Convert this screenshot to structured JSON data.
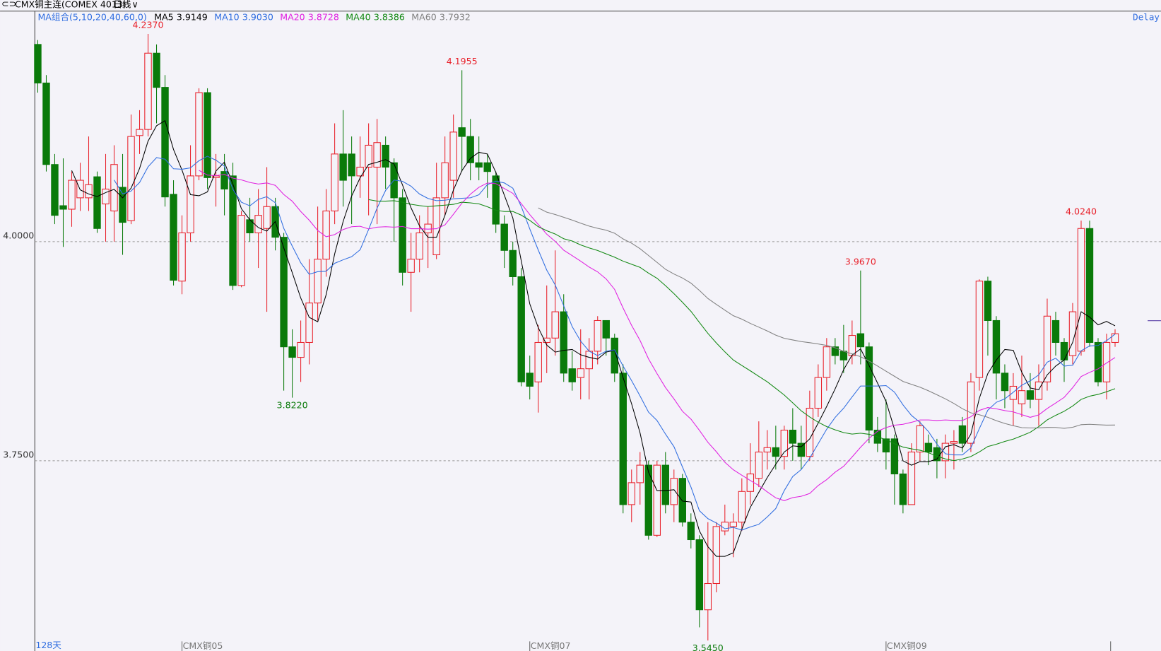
{
  "header": {
    "symbol": "CMX铜主连(COMEX 4013)",
    "period": "日线",
    "ma_group": "MA组合(5,10,20,40,60,0)",
    "delay": "Delay",
    "count": "128天"
  },
  "chart_data": {
    "type": "candlestick",
    "categories": [
      null,
      null,
      null,
      null,
      null,
      null,
      null,
      null,
      null,
      null,
      null,
      null,
      null,
      null,
      null,
      null,
      null,
      "CMX铜05",
      null,
      null,
      null,
      null,
      null,
      null,
      null,
      null,
      null,
      null,
      null,
      null,
      null,
      null,
      null,
      null,
      null,
      null,
      null,
      null,
      null,
      null,
      null,
      null,
      null,
      null,
      null,
      null,
      null,
      null,
      null,
      null,
      null,
      null,
      null,
      null,
      null,
      null,
      null,
      null,
      "CMX铜07",
      null,
      null,
      null,
      null,
      null,
      null,
      null,
      null,
      null,
      null,
      null,
      null,
      null,
      null,
      null,
      null,
      null,
      null,
      null,
      null,
      null,
      null,
      null,
      null,
      null,
      null,
      null,
      null,
      null,
      null,
      null,
      null,
      null,
      null,
      null,
      null,
      null,
      null,
      null,
      null,
      null,
      "CMX铜09",
      null,
      null,
      null,
      null,
      null,
      null,
      null,
      null,
      null,
      null,
      null,
      null,
      null,
      null,
      null,
      null,
      null,
      null,
      null,
      null,
      null,
      null,
      null,
      null,
      null,
      null,
      null
    ],
    "open": [
      4.225,
      4.181,
      4.088,
      4.041,
      4.037,
      4.05,
      4.05,
      4.074,
      4.043,
      4.035,
      4.062,
      4.024,
      4.121,
      4.128,
      4.215,
      4.176,
      4.054,
      3.955,
      4.01,
      4.075,
      4.17,
      4.073,
      4.08,
      4.075,
      3.95,
      4.025,
      4.01,
      4.015,
      4.04,
      4.005,
      3.88,
      3.868,
      3.885,
      3.93,
      3.98,
      4.035,
      4.1,
      4.1,
      4.075,
      4.085,
      4.085,
      4.11,
      4.09,
      4.05,
      3.965,
      3.98,
      4.01,
      3.985,
      4.05,
      4.07,
      4.13,
      4.12,
      4.09,
      4.09,
      4.075,
      4.02,
      3.99,
      3.96,
      3.85,
      3.84,
      3.885,
      3.89,
      3.92,
      3.855,
      3.845,
      3.855,
      3.875,
      3.91,
      3.89,
      3.85,
      3.7,
      3.725,
      3.745,
      3.665,
      3.745,
      3.7,
      3.73,
      3.68,
      3.66,
      3.58,
      3.61,
      3.67,
      3.675,
      3.68,
      3.715,
      3.73,
      3.76,
      3.765,
      3.755,
      3.785,
      3.77,
      3.755,
      3.81,
      3.845,
      3.88,
      3.875,
      3.87,
      3.895,
      3.88,
      3.785,
      3.775,
      3.775,
      3.735,
      3.7,
      3.76,
      3.77,
      3.765,
      3.75,
      3.77,
      3.79,
      3.77,
      3.845,
      3.955,
      3.91,
      3.85,
      3.82,
      3.815,
      3.83,
      3.82,
      3.84,
      3.91,
      3.885,
      3.87,
      3.875,
      4.015,
      3.885,
      3.84,
      3.885
    ],
    "high": [
      4.23,
      4.19,
      4.1,
      4.095,
      4.08,
      4.09,
      4.12,
      4.08,
      4.1,
      4.11,
      4.1,
      4.145,
      4.15,
      4.237,
      4.225,
      4.19,
      4.07,
      4.03,
      4.11,
      4.175,
      4.175,
      4.1,
      4.1,
      4.09,
      4.035,
      4.05,
      4.06,
      4.085,
      4.05,
      4.01,
      3.9,
      3.91,
      3.98,
      4.04,
      4.06,
      4.135,
      4.15,
      4.12,
      4.12,
      4.135,
      4.14,
      4.12,
      4.095,
      4.06,
      4.01,
      4.03,
      4.04,
      4.09,
      4.12,
      4.145,
      4.1955,
      4.14,
      4.12,
      4.1,
      4.08,
      4.03,
      4.0,
      3.97,
      3.87,
      3.905,
      3.95,
      3.99,
      3.94,
      3.875,
      3.9,
      3.89,
      3.915,
      3.91,
      3.895,
      3.86,
      3.74,
      3.76,
      3.75,
      3.75,
      3.76,
      3.74,
      3.735,
      3.69,
      3.665,
      3.68,
      3.68,
      3.7,
      3.69,
      3.73,
      3.77,
      3.795,
      3.785,
      3.79,
      3.79,
      3.81,
      3.79,
      3.83,
      3.86,
      3.89,
      3.89,
      3.905,
      3.91,
      3.967,
      3.885,
      3.8,
      3.82,
      3.78,
      3.74,
      3.77,
      3.795,
      3.78,
      3.775,
      3.78,
      3.785,
      3.8,
      3.85,
      3.957,
      3.96,
      3.915,
      3.86,
      3.85,
      3.87,
      3.85,
      3.86,
      3.935,
      3.92,
      3.89,
      3.93,
      4.024,
      4.024,
      3.89,
      3.895,
      3.9
    ],
    "low": [
      4.17,
      4.08,
      4.02,
      3.994,
      4.017,
      4.035,
      4.035,
      4.01,
      4.0,
      4.0,
      3.985,
      4.02,
      4.1,
      4.12,
      4.135,
      4.04,
      3.95,
      3.94,
      4.0,
      4.07,
      4.06,
      4.04,
      4.03,
      3.945,
      3.948,
      4.0,
      3.97,
      3.92,
      3.99,
      3.83,
      3.822,
      3.84,
      3.86,
      3.91,
      3.96,
      4.02,
      4.04,
      4.02,
      4.05,
      4.03,
      4.02,
      4.06,
      4.0,
      3.95,
      3.92,
      3.965,
      3.97,
      3.98,
      4.03,
      4.05,
      4.08,
      4.07,
      4.07,
      4.05,
      4.01,
      3.97,
      3.95,
      3.835,
      3.82,
      3.805,
      3.85,
      3.87,
      3.84,
      3.83,
      3.82,
      3.82,
      3.86,
      3.87,
      3.84,
      3.69,
      3.68,
      3.7,
      3.66,
      3.663,
      3.69,
      3.68,
      3.675,
      3.65,
      3.56,
      3.545,
      3.6,
      3.665,
      3.64,
      3.67,
      3.7,
      3.72,
      3.74,
      3.74,
      3.74,
      3.75,
      3.74,
      3.75,
      3.8,
      3.83,
      3.86,
      3.85,
      3.86,
      3.86,
      3.77,
      3.76,
      3.74,
      3.7,
      3.69,
      3.7,
      3.75,
      3.745,
      3.73,
      3.73,
      3.74,
      3.76,
      3.76,
      3.83,
      3.87,
      3.82,
      3.81,
      3.79,
      3.8,
      3.81,
      3.79,
      3.83,
      3.87,
      3.84,
      3.86,
      3.87,
      3.88,
      3.835,
      3.82,
      3.88
    ],
    "close": [
      4.181,
      4.088,
      4.03,
      4.037,
      4.07,
      4.07,
      4.065,
      4.015,
      4.06,
      4.088,
      4.022,
      4.12,
      4.128,
      4.215,
      4.176,
      4.051,
      3.956,
      4.01,
      4.075,
      4.17,
      4.073,
      4.075,
      4.06,
      3.95,
      4.03,
      4.01,
      4.03,
      4.04,
      4.005,
      3.88,
      3.868,
      3.885,
      3.93,
      3.98,
      4.035,
      4.1,
      4.07,
      4.075,
      4.085,
      4.11,
      4.113,
      4.085,
      4.05,
      3.965,
      3.98,
      4.01,
      4.02,
      4.05,
      4.09,
      4.125,
      4.12,
      4.09,
      4.085,
      4.08,
      4.02,
      3.99,
      3.96,
      3.84,
      3.835,
      3.885,
      3.89,
      3.92,
      3.85,
      3.84,
      3.855,
      3.875,
      3.91,
      3.89,
      3.85,
      3.7,
      3.725,
      3.745,
      3.665,
      3.745,
      3.7,
      3.73,
      3.68,
      3.66,
      3.58,
      3.61,
      3.675,
      3.68,
      3.68,
      3.715,
      3.735,
      3.76,
      3.765,
      3.755,
      3.785,
      3.77,
      3.755,
      3.81,
      3.845,
      3.88,
      3.87,
      3.865,
      3.893,
      3.88,
      3.785,
      3.77,
      3.76,
      3.735,
      3.7,
      3.76,
      3.79,
      3.76,
      3.75,
      3.77,
      3.772,
      3.77,
      3.84,
      3.955,
      3.91,
      3.85,
      3.83,
      3.835,
      3.83,
      3.82,
      3.84,
      3.915,
      3.885,
      3.865,
      3.92,
      4.015,
      3.885,
      3.84,
      3.885,
      3.895
    ],
    "up_color": "#e8202a",
    "down_color": "#0a7a0a",
    "ylim": [
      3.533,
      4.263
    ],
    "yticks": [
      {
        "value": 4,
        "label": "4.0000"
      },
      {
        "value": 3.75,
        "label": "3.7500"
      }
    ],
    "grid": true,
    "moving_averages": [
      {
        "name": "MA5",
        "period": 5,
        "value": 3.9149,
        "color": "#000000"
      },
      {
        "name": "MA10",
        "period": 10,
        "value": 3.903,
        "value_label": "3.9030",
        "color": "#2f6de0"
      },
      {
        "name": "MA20",
        "period": 20,
        "value": 3.8728,
        "color": "#e020e0"
      },
      {
        "name": "MA40",
        "period": 40,
        "value": 3.8386,
        "color": "#118811"
      },
      {
        "name": "MA60",
        "period": 60,
        "value": 3.7932,
        "color": "#808080"
      }
    ],
    "annotations": [
      {
        "value": 4.237,
        "label": "4.2370"
      },
      {
        "value": 4.1955,
        "label": "4.1955"
      },
      {
        "value": 3.822,
        "label": "3.8220"
      },
      {
        "value": 3.545,
        "label": "3.5450"
      },
      {
        "value": 3.967,
        "label": "3.9670"
      },
      {
        "value": 4.024,
        "label": "4.0240"
      }
    ]
  }
}
